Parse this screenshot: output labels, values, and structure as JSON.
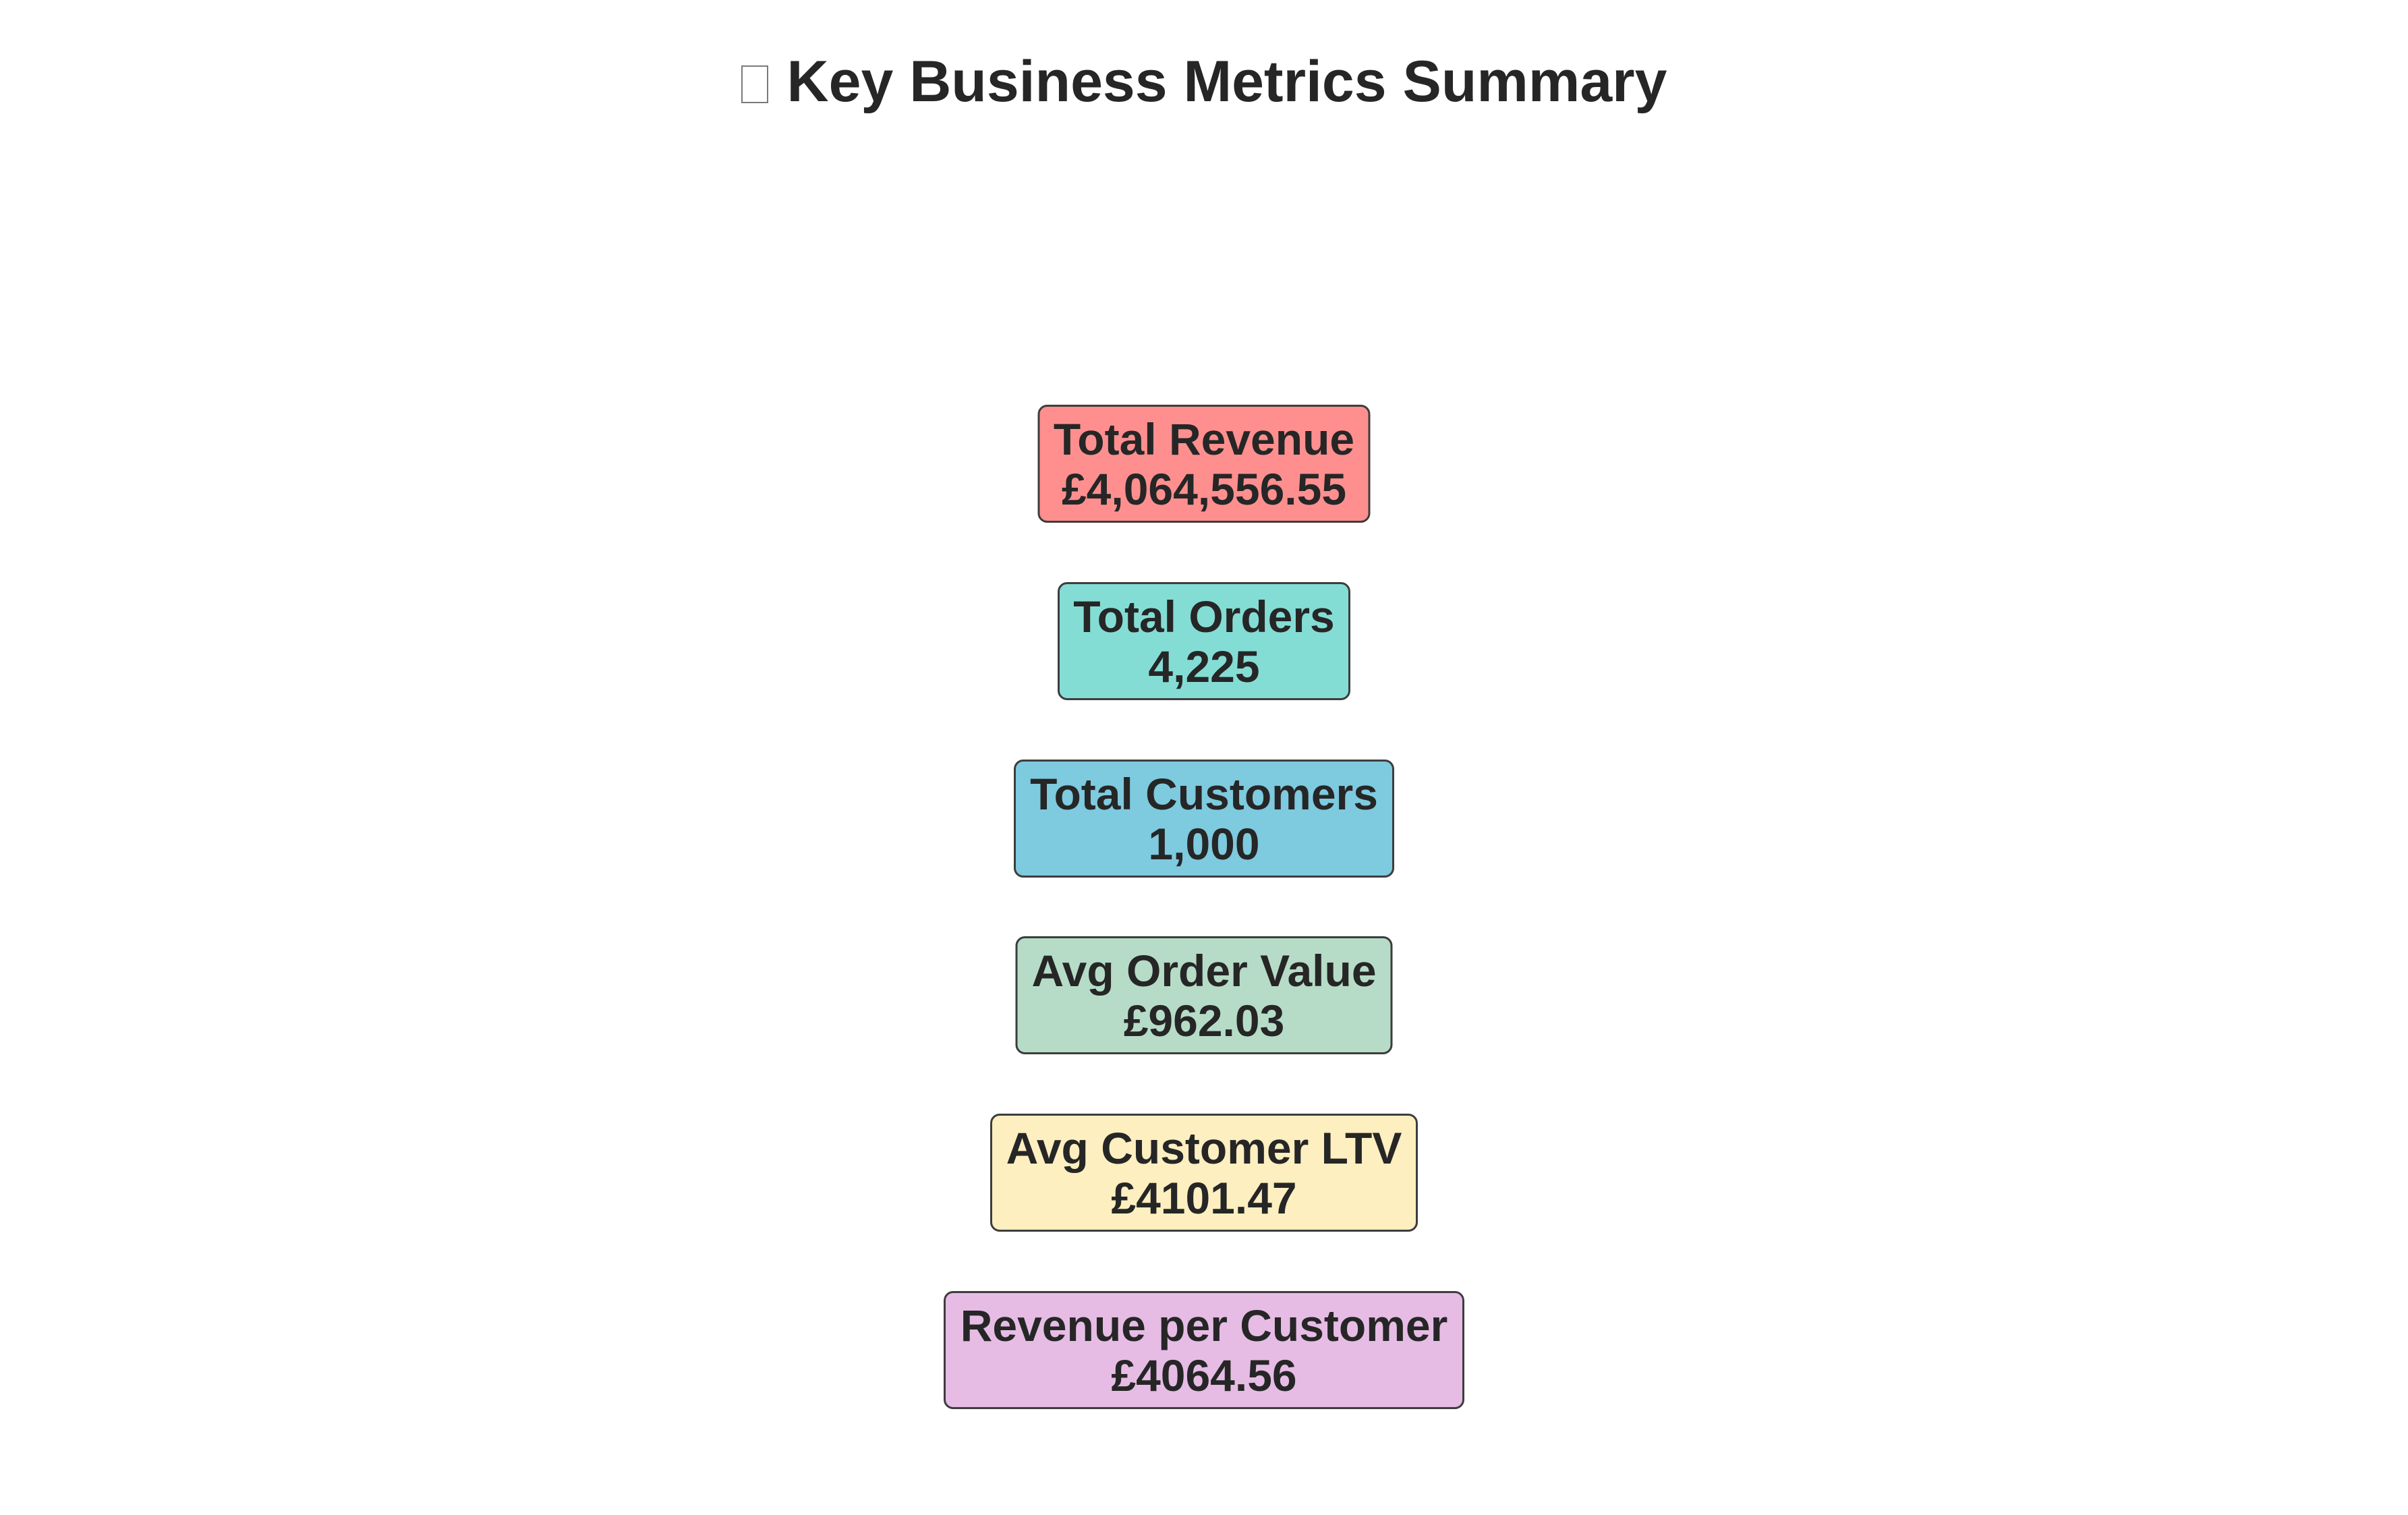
{
  "title": {
    "icon": "chart-icon",
    "text": "Key Business Metrics Summary"
  },
  "chart_data": {
    "type": "table",
    "title": "Key Business Metrics Summary",
    "metrics": [
      {
        "label": "Total Revenue",
        "value": "£4,064,556.55",
        "color": "#ff8f8f"
      },
      {
        "label": "Total Orders",
        "value": "4,225",
        "color": "#84ddd5"
      },
      {
        "label": "Total Customers",
        "value": "1,000",
        "color": "#7ecadf"
      },
      {
        "label": "Avg Order Value",
        "value": "£962.03",
        "color": "#b6dcc8"
      },
      {
        "label": "Avg Customer LTV",
        "value": "£4101.47",
        "color": "#fdefc0"
      },
      {
        "label": "Revenue per Customer",
        "value": "£4064.56",
        "color": "#e6bce5"
      }
    ]
  }
}
